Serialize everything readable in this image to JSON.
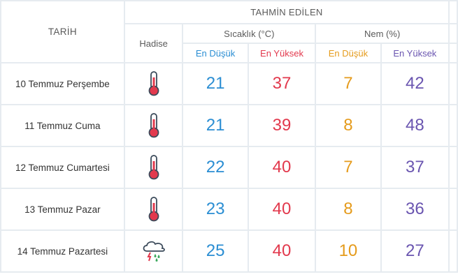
{
  "header": {
    "date_col": "TARİH",
    "forecast_title": "TAHMİN EDİLEN",
    "event_col": "Hadise",
    "temperature_group": "Sıcaklık (°C)",
    "humidity_group": "Nem (%)",
    "temp_min": "En Düşük",
    "temp_max": "En Yüksek",
    "hum_min": "En Düşük",
    "hum_max": "En Yüksek"
  },
  "colors": {
    "min_temp": "#2b8ed3",
    "max_temp": "#e2394d",
    "min_humidity": "#e59b1c",
    "max_humidity": "#6a55b0"
  },
  "rows": [
    {
      "date": "10 Temmuz Perşembe",
      "icon": "thermometer-hot-icon",
      "temp_min": "21",
      "temp_max": "37",
      "hum_min": "7",
      "hum_max": "42"
    },
    {
      "date": "11 Temmuz Cuma",
      "icon": "thermometer-hot-icon",
      "temp_min": "21",
      "temp_max": "39",
      "hum_min": "8",
      "hum_max": "48"
    },
    {
      "date": "12 Temmuz Cumartesi",
      "icon": "thermometer-hot-icon",
      "temp_min": "22",
      "temp_max": "40",
      "hum_min": "7",
      "hum_max": "37"
    },
    {
      "date": "13 Temmuz Pazar",
      "icon": "thermometer-hot-icon",
      "temp_min": "23",
      "temp_max": "40",
      "hum_min": "8",
      "hum_max": "36"
    },
    {
      "date": "14 Temmuz Pazartesi",
      "icon": "thunderstorm-rain-icon",
      "temp_min": "25",
      "temp_max": "40",
      "hum_min": "10",
      "hum_max": "27"
    }
  ]
}
